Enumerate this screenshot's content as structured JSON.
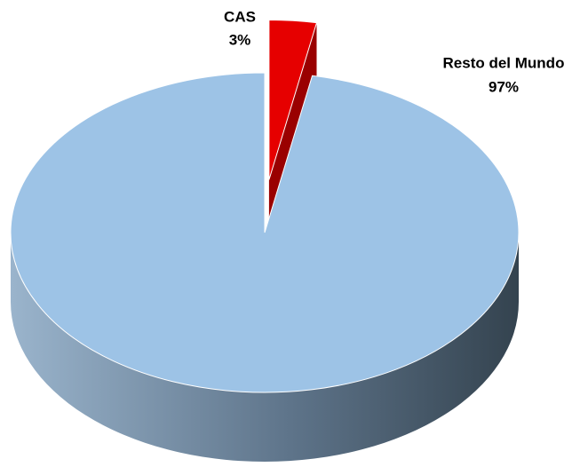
{
  "chart_data": {
    "type": "pie",
    "categories": [
      "CAS",
      "Resto del Mundo"
    ],
    "values": [
      3,
      97
    ],
    "value_labels": [
      "3%",
      "97%"
    ],
    "colors": [
      "#e60000",
      "#9dc3e6"
    ],
    "exploded": [
      true,
      false
    ]
  }
}
